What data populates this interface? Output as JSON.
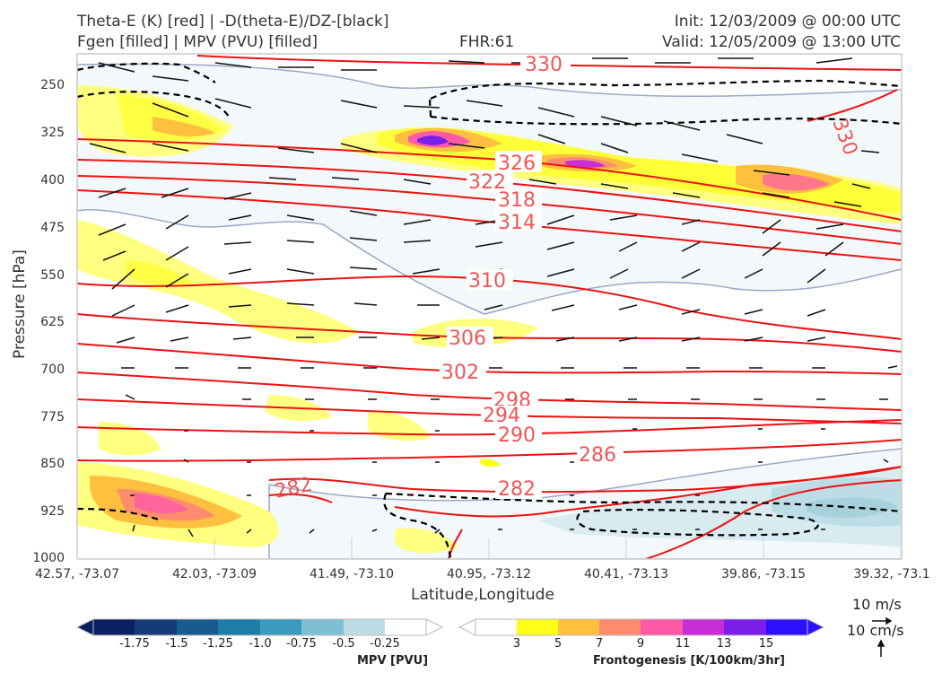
{
  "header": {
    "title_left_1": "Theta-E (K) [red] | -D(theta-E)/DZ-[black]",
    "title_left_2": "Fgen [filled] | MPV (PVU) [filled]",
    "title_center": "FHR:61",
    "title_right_1": "Init: 12/03/2009 @ 00:00 UTC",
    "title_right_2": "Valid: 12/05/2009 @ 13:00 UTC"
  },
  "chart_data": {
    "type": "cross-section",
    "xlabel": "Latitude,Longitude",
    "ylabel": "Pressure [hPa]",
    "x_ticks": [
      "42.57, -73.07",
      "42.03, -73.09",
      "41.49, -73.10",
      "40.95, -73.12",
      "40.41, -73.13",
      "39.86, -73.15",
      "39.32, -73.1"
    ],
    "y_ticks": [
      250,
      325,
      400,
      475,
      550,
      625,
      700,
      775,
      850,
      925,
      1000
    ],
    "ylim": [
      1000,
      210
    ],
    "grid": true,
    "theta_e_contours": [
      {
        "label": "330",
        "points": [
          [
            0,
            53
          ],
          [
            0.55,
            72
          ],
          [
            1,
            80
          ]
        ]
      },
      {
        "label": "326",
        "points": [
          [
            0,
            155
          ],
          [
            0.5,
            180
          ],
          [
            1,
            242
          ]
        ]
      },
      {
        "label": "322",
        "points": [
          [
            0,
            178
          ],
          [
            0.48,
            202
          ],
          [
            1,
            258
          ]
        ]
      },
      {
        "label": "318",
        "points": [
          [
            0,
            197
          ],
          [
            0.5,
            222
          ],
          [
            1,
            272
          ]
        ]
      },
      {
        "label": "314",
        "points": [
          [
            0,
            212
          ],
          [
            0.5,
            245
          ],
          [
            1,
            288
          ]
        ]
      },
      {
        "label": "310",
        "points": [
          [
            0,
            316
          ],
          [
            0.5,
            313
          ],
          [
            0.8,
            340
          ],
          [
            1,
            378
          ]
        ]
      },
      {
        "label": "306",
        "points": [
          [
            0,
            352
          ],
          [
            0.48,
            375
          ],
          [
            0.8,
            380
          ],
          [
            1,
            390
          ]
        ]
      },
      {
        "label": "302",
        "points": [
          [
            0,
            383
          ],
          [
            0.46,
            412
          ],
          [
            1,
            415
          ]
        ]
      },
      {
        "label": "298",
        "points": [
          [
            0,
            415
          ],
          [
            0.52,
            443
          ],
          [
            1,
            455
          ]
        ]
      },
      {
        "label": "294",
        "points": [
          [
            0,
            445
          ],
          [
            0.52,
            460
          ],
          [
            1,
            470
          ]
        ]
      },
      {
        "label": "290",
        "points": [
          [
            0,
            477
          ],
          [
            0.52,
            483
          ],
          [
            1,
            470
          ]
        ]
      },
      {
        "label": "286",
        "points": [
          [
            0,
            513
          ],
          [
            0.6,
            507
          ],
          [
            1,
            490
          ]
        ]
      },
      {
        "label": "282",
        "points": [
          [
            0.25,
            540
          ],
          [
            0.55,
            545
          ],
          [
            0.9,
            540
          ],
          [
            1,
            520
          ]
        ]
      }
    ],
    "mpv_colorbar": {
      "title": "MPV [PVU]",
      "ticks": [
        "-1.75",
        "-1.5",
        "-1.25",
        "-1.0",
        "-0.75",
        "-0.5",
        "-0.25"
      ],
      "colors": [
        "#0b1f63",
        "#173a78",
        "#1b5a8c",
        "#1f7ea5",
        "#3b9bbf",
        "#7fbfd3",
        "#bddde6",
        "#ffffff"
      ]
    },
    "fgen_colorbar": {
      "title": "Frontogenesis [K/100km/3hr]",
      "ticks": [
        "3",
        "5",
        "7",
        "9",
        "11",
        "13",
        "15"
      ],
      "colors": [
        "#ffffff",
        "#ffff1a",
        "#ffc040",
        "#ff8c6e",
        "#ff5aa8",
        "#c82ed8",
        "#7a1ee8",
        "#2a10ff"
      ]
    }
  },
  "wind_key": {
    "horizontal": "10 m/s",
    "vertical": "10 cm/s"
  },
  "colors": {
    "theta_e": "#ee1111",
    "theta_e_label": "#f25555",
    "ddz": "#000000",
    "mpv_outline": "#9aa8c8"
  }
}
